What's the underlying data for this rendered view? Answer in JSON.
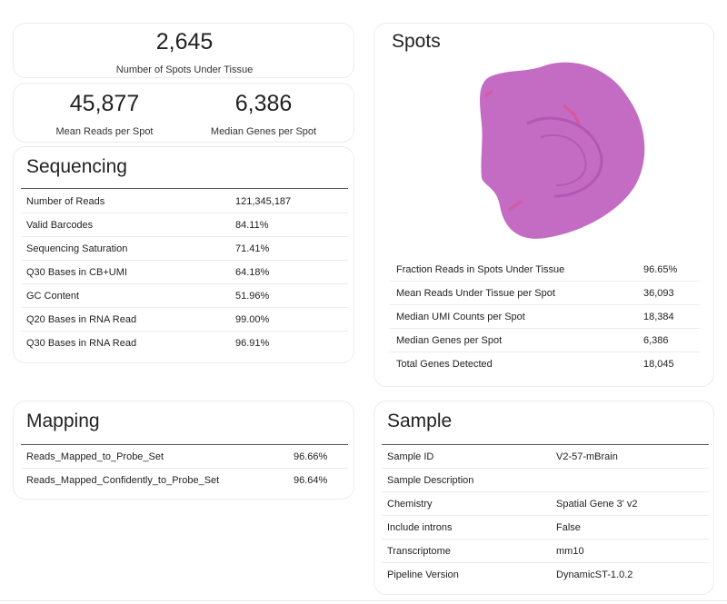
{
  "summary": {
    "spots_under_tissue": {
      "value": "2,645",
      "label": "Number of Spots Under Tissue"
    },
    "mean_reads": {
      "value": "45,877",
      "label": "Mean Reads per Spot"
    },
    "median_genes": {
      "value": "6,386",
      "label": "Median Genes per Spot"
    }
  },
  "sequencing": {
    "title": "Sequencing",
    "rows": [
      {
        "key": "Number of Reads",
        "value": "121,345,187"
      },
      {
        "key": "Valid Barcodes",
        "value": "84.11%"
      },
      {
        "key": "Sequencing Saturation",
        "value": "71.41%"
      },
      {
        "key": "Q30 Bases in CB+UMI",
        "value": "64.18%"
      },
      {
        "key": "GC Content",
        "value": "51.96%"
      },
      {
        "key": "Q20 Bases in RNA Read",
        "value": "99.00%"
      },
      {
        "key": "Q30 Bases in RNA Read",
        "value": "96.91%"
      }
    ]
  },
  "spots": {
    "title": "Spots",
    "rows": [
      {
        "key": "Fraction Reads in Spots Under Tissue",
        "value": "96.65%"
      },
      {
        "key": "Mean Reads Under Tissue per Spot",
        "value": "36,093"
      },
      {
        "key": "Median UMI Counts per Spot",
        "value": "18,384"
      },
      {
        "key": "Median Genes per Spot",
        "value": "6,386"
      },
      {
        "key": "Total Genes Detected",
        "value": "18,045"
      }
    ]
  },
  "mapping": {
    "title": "Mapping",
    "rows": [
      {
        "key": "Reads_Mapped_to_Probe_Set",
        "value": "96.66%"
      },
      {
        "key": "Reads_Mapped_Confidently_to_Probe_Set",
        "value": "96.64%"
      }
    ]
  },
  "sample": {
    "title": "Sample",
    "rows": [
      {
        "key": "Sample ID",
        "value": "V2-57-mBrain"
      },
      {
        "key": "Sample Description",
        "value": ""
      },
      {
        "key": "Chemistry",
        "value": "Spatial Gene 3' v2"
      },
      {
        "key": "Include introns",
        "value": "False"
      },
      {
        "key": "Transcriptome",
        "value": "mm10"
      },
      {
        "key": "Pipeline Version",
        "value": "DynamicST-1.0.2"
      }
    ]
  },
  "colors": {
    "tissue": "#c46bc4",
    "tissue_dark": "#a94fae",
    "tissue_highlight": "#e0508a"
  }
}
